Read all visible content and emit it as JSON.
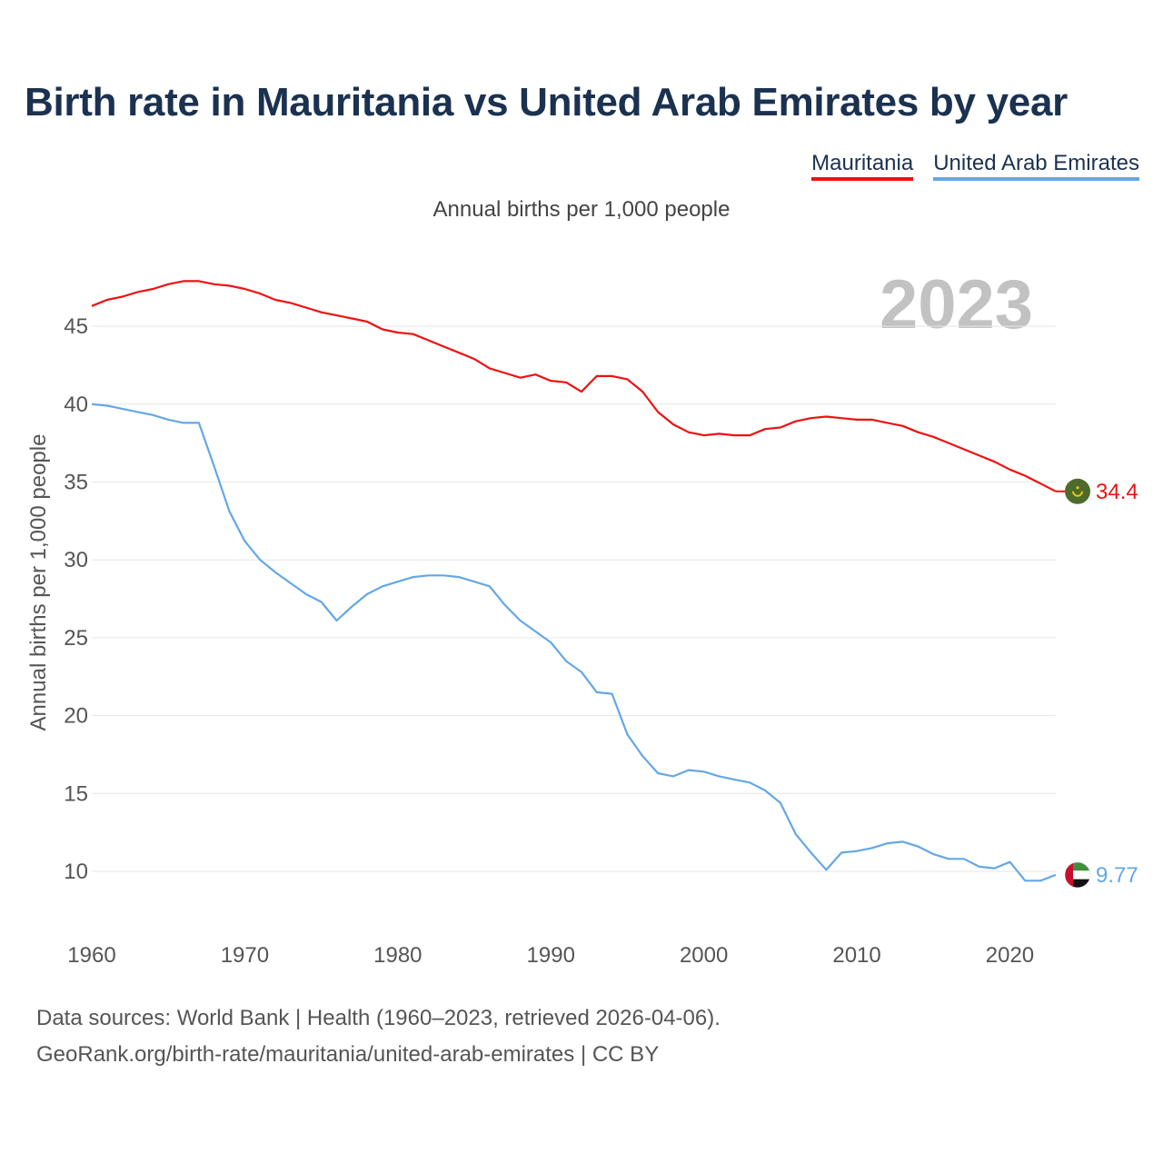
{
  "title": "Birth rate in Mauritania vs United Arab Emirates by year",
  "legend": [
    {
      "label": "Mauritania",
      "color": "#ee1111"
    },
    {
      "label": "United Arab Emirates",
      "color": "#64a7e6"
    }
  ],
  "subtitle": "Annual births per 1,000 people",
  "year_watermark": "2023",
  "footer": {
    "line1": "Data sources: World Bank | Health (1960–2023, retrieved 2026-04-06).",
    "line2": "GeoRank.org/birth-rate/mauritania/united-arab-emirates | CC BY"
  },
  "end_labels": {
    "mauritania": "34.4",
    "uae": "9.77"
  },
  "chart_data": {
    "type": "line",
    "title": "Birth rate in Mauritania vs United Arab Emirates by year",
    "xlabel": "",
    "ylabel": "Annual births per 1,000 people",
    "xlim": [
      1960,
      2023
    ],
    "ylim": [
      7,
      48
    ],
    "x_ticks": [
      1960,
      1970,
      1980,
      1990,
      2000,
      2010,
      2020
    ],
    "y_ticks": [
      10,
      15,
      20,
      25,
      30,
      35,
      40,
      45
    ],
    "grid": true,
    "legend_position": "top-right",
    "x": [
      1960,
      1961,
      1962,
      1963,
      1964,
      1965,
      1966,
      1967,
      1968,
      1969,
      1970,
      1971,
      1972,
      1973,
      1974,
      1975,
      1976,
      1977,
      1978,
      1979,
      1980,
      1981,
      1982,
      1983,
      1984,
      1985,
      1986,
      1987,
      1988,
      1989,
      1990,
      1991,
      1992,
      1993,
      1994,
      1995,
      1996,
      1997,
      1998,
      1999,
      2000,
      2001,
      2002,
      2003,
      2004,
      2005,
      2006,
      2007,
      2008,
      2009,
      2010,
      2011,
      2012,
      2013,
      2014,
      2015,
      2016,
      2017,
      2018,
      2019,
      2020,
      2021,
      2022,
      2023
    ],
    "series": [
      {
        "name": "Mauritania",
        "color": "#ee1111",
        "values": [
          46.3,
          46.7,
          46.9,
          47.2,
          47.4,
          47.7,
          47.9,
          47.9,
          47.7,
          47.6,
          47.4,
          47.1,
          46.7,
          46.5,
          46.2,
          45.9,
          45.7,
          45.5,
          45.3,
          44.8,
          44.6,
          44.5,
          44.1,
          43.7,
          43.3,
          42.9,
          42.3,
          42.0,
          41.7,
          41.9,
          41.5,
          41.4,
          40.8,
          41.8,
          41.8,
          41.6,
          40.8,
          39.5,
          38.7,
          38.2,
          38.0,
          38.1,
          38.0,
          38.0,
          38.4,
          38.5,
          38.9,
          39.1,
          39.2,
          39.1,
          39.0,
          39.0,
          38.8,
          38.6,
          38.2,
          37.9,
          37.5,
          37.1,
          36.7,
          36.3,
          35.8,
          35.4,
          34.9,
          34.4
        ]
      },
      {
        "name": "United Arab Emirates",
        "color": "#64a7e6",
        "values": [
          40.0,
          39.9,
          39.7,
          39.5,
          39.3,
          39.0,
          38.8,
          38.8,
          36.0,
          33.1,
          31.2,
          30.0,
          29.2,
          28.5,
          27.8,
          27.3,
          26.1,
          27.0,
          27.8,
          28.3,
          28.6,
          28.9,
          29.0,
          29.0,
          28.9,
          28.6,
          28.3,
          27.1,
          26.1,
          25.4,
          24.7,
          23.5,
          22.8,
          21.5,
          21.4,
          18.8,
          17.4,
          16.3,
          16.1,
          16.5,
          16.4,
          16.1,
          15.9,
          15.7,
          15.2,
          14.4,
          12.4,
          11.2,
          10.1,
          11.2,
          11.3,
          11.5,
          11.8,
          11.9,
          11.6,
          11.1,
          10.8,
          10.8,
          10.3,
          10.2,
          10.6,
          9.4,
          9.4,
          9.77
        ]
      }
    ]
  }
}
